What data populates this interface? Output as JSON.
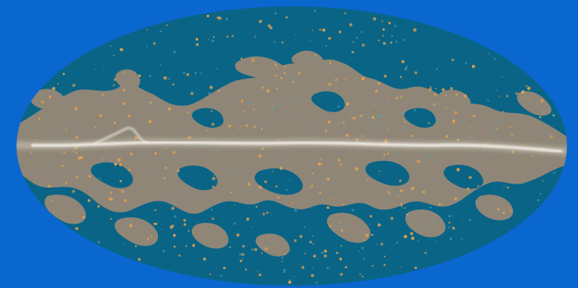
{
  "map": {
    "projection": "mollweide",
    "colors": {
      "background": "#0a67d0",
      "masked_region": "#0a6486",
      "unmasked_region": "#8f8677",
      "point_sources": "#e0a04e",
      "galactic_plane": "#f2ede4",
      "faint_sources": "#5aa6bf"
    }
  }
}
